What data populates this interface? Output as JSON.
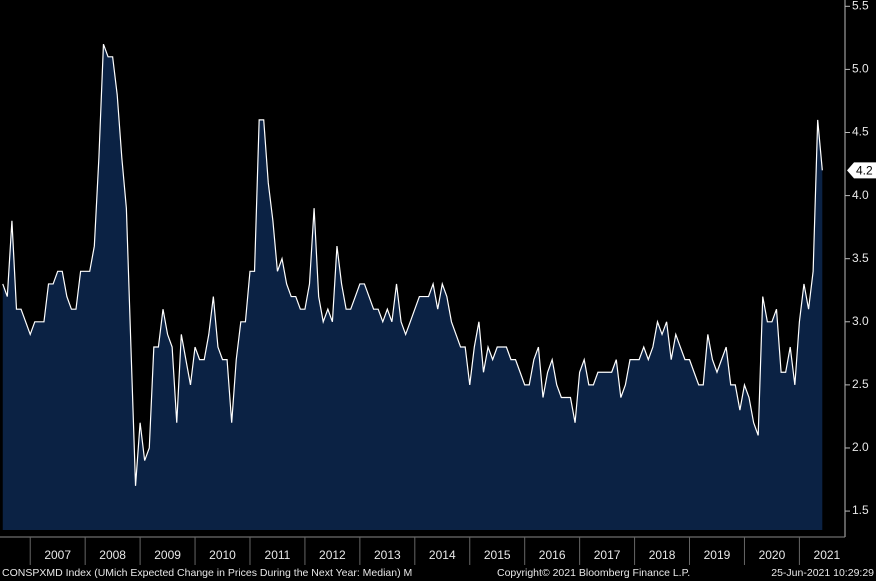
{
  "chart_data": {
    "type": "area",
    "series": [
      {
        "name": "CONSPXMD Index (UMich Expected Change in Prices During the Next Year: Median)  M",
        "color": "#ffffff",
        "fill": "#0b2244",
        "x": [
          2006.5,
          2006.583,
          2006.667,
          2006.75,
          2006.833,
          2006.917,
          2007,
          2007.083,
          2007.167,
          2007.25,
          2007.333,
          2007.417,
          2007.5,
          2007.583,
          2007.667,
          2007.75,
          2007.833,
          2007.917,
          2008,
          2008.083,
          2008.167,
          2008.25,
          2008.333,
          2008.417,
          2008.5,
          2008.583,
          2008.667,
          2008.75,
          2008.833,
          2008.917,
          2009,
          2009.083,
          2009.167,
          2009.25,
          2009.333,
          2009.417,
          2009.5,
          2009.583,
          2009.667,
          2009.75,
          2009.833,
          2009.917,
          2010,
          2010.083,
          2010.167,
          2010.25,
          2010.333,
          2010.417,
          2010.5,
          2010.583,
          2010.667,
          2010.75,
          2010.833,
          2010.917,
          2011,
          2011.083,
          2011.167,
          2011.25,
          2011.333,
          2011.417,
          2011.5,
          2011.583,
          2011.667,
          2011.75,
          2011.833,
          2011.917,
          2012,
          2012.083,
          2012.167,
          2012.25,
          2012.333,
          2012.417,
          2012.5,
          2012.583,
          2012.667,
          2012.75,
          2012.833,
          2012.917,
          2013,
          2013.083,
          2013.167,
          2013.25,
          2013.333,
          2013.417,
          2013.5,
          2013.583,
          2013.667,
          2013.75,
          2013.833,
          2013.917,
          2014,
          2014.083,
          2014.167,
          2014.25,
          2014.333,
          2014.417,
          2014.5,
          2014.583,
          2014.667,
          2014.75,
          2014.833,
          2014.917,
          2015,
          2015.083,
          2015.167,
          2015.25,
          2015.333,
          2015.417,
          2015.5,
          2015.583,
          2015.667,
          2015.75,
          2015.833,
          2015.917,
          2016,
          2016.083,
          2016.167,
          2016.25,
          2016.333,
          2016.417,
          2016.5,
          2016.583,
          2016.667,
          2016.75,
          2016.833,
          2016.917,
          2017,
          2017.083,
          2017.167,
          2017.25,
          2017.333,
          2017.417,
          2017.5,
          2017.583,
          2017.667,
          2017.75,
          2017.833,
          2017.917,
          2018,
          2018.083,
          2018.167,
          2018.25,
          2018.333,
          2018.417,
          2018.5,
          2018.583,
          2018.667,
          2018.75,
          2018.833,
          2018.917,
          2019,
          2019.083,
          2019.167,
          2019.25,
          2019.333,
          2019.417,
          2019.5,
          2019.583,
          2019.667,
          2019.75,
          2019.833,
          2019.917,
          2020,
          2020.083,
          2020.167,
          2020.25,
          2020.333,
          2020.417,
          2020.5,
          2020.583,
          2020.667,
          2020.75,
          2020.833,
          2020.917,
          2021,
          2021.083,
          2021.167,
          2021.25,
          2021.333,
          2021.417
        ],
        "values": [
          3.3,
          3.2,
          3.8,
          3.1,
          3.1,
          3.0,
          2.9,
          3.0,
          3.0,
          3.0,
          3.3,
          3.3,
          3.4,
          3.4,
          3.2,
          3.1,
          3.1,
          3.4,
          3.4,
          3.4,
          3.6,
          4.3,
          5.2,
          5.1,
          5.1,
          4.8,
          4.3,
          3.9,
          2.8,
          1.7,
          2.2,
          1.9,
          2.0,
          2.8,
          2.8,
          3.1,
          2.9,
          2.8,
          2.2,
          2.9,
          2.7,
          2.5,
          2.8,
          2.7,
          2.7,
          2.9,
          3.2,
          2.8,
          2.7,
          2.7,
          2.2,
          2.7,
          3.0,
          3.0,
          3.4,
          3.4,
          4.6,
          4.6,
          4.1,
          3.8,
          3.4,
          3.5,
          3.3,
          3.2,
          3.2,
          3.1,
          3.1,
          3.3,
          3.9,
          3.2,
          3.0,
          3.1,
          3.0,
          3.6,
          3.3,
          3.1,
          3.1,
          3.2,
          3.3,
          3.3,
          3.2,
          3.1,
          3.1,
          3.0,
          3.1,
          3.0,
          3.3,
          3.0,
          2.9,
          3.0,
          3.1,
          3.2,
          3.2,
          3.2,
          3.3,
          3.1,
          3.3,
          3.2,
          3.0,
          2.9,
          2.8,
          2.8,
          2.5,
          2.8,
          3.0,
          2.6,
          2.8,
          2.7,
          2.8,
          2.8,
          2.8,
          2.7,
          2.7,
          2.6,
          2.5,
          2.5,
          2.7,
          2.8,
          2.4,
          2.6,
          2.7,
          2.5,
          2.4,
          2.4,
          2.4,
          2.2,
          2.6,
          2.7,
          2.5,
          2.5,
          2.6,
          2.6,
          2.6,
          2.6,
          2.7,
          2.4,
          2.5,
          2.7,
          2.7,
          2.7,
          2.8,
          2.7,
          2.8,
          3.0,
          2.9,
          3.0,
          2.7,
          2.9,
          2.8,
          2.7,
          2.7,
          2.6,
          2.5,
          2.5,
          2.9,
          2.7,
          2.6,
          2.7,
          2.8,
          2.5,
          2.5,
          2.3,
          2.5,
          2.4,
          2.2,
          2.1,
          3.2,
          3.0,
          3.0,
          3.1,
          2.6,
          2.6,
          2.8,
          2.5,
          3.0,
          3.3,
          3.1,
          3.4,
          4.6,
          4.2
        ]
      }
    ],
    "xlim": [
      2006.45,
      2021.83
    ],
    "xticks": [
      {
        "value": 2007.5,
        "label": "2007"
      },
      {
        "value": 2008.5,
        "label": "2008"
      },
      {
        "value": 2009.5,
        "label": "2009"
      },
      {
        "value": 2010.5,
        "label": "2010"
      },
      {
        "value": 2011.5,
        "label": "2011"
      },
      {
        "value": 2012.5,
        "label": "2012"
      },
      {
        "value": 2013.5,
        "label": "2013"
      },
      {
        "value": 2014.5,
        "label": "2014"
      },
      {
        "value": 2015.5,
        "label": "2015"
      },
      {
        "value": 2016.5,
        "label": "2016"
      },
      {
        "value": 2017.5,
        "label": "2017"
      },
      {
        "value": 2018.5,
        "label": "2018"
      },
      {
        "value": 2019.5,
        "label": "2019"
      },
      {
        "value": 2020.5,
        "label": "2020"
      },
      {
        "value": 2021.5,
        "label": "2021"
      }
    ],
    "ylim": [
      1.35,
      5.55
    ],
    "yticks": [
      1.5,
      {
        "value": 2,
        "label": "2.0"
      },
      2.5,
      {
        "value": 3,
        "label": "3.0"
      },
      3.5,
      {
        "value": 4,
        "label": "4.0"
      },
      4.5,
      {
        "value": 5,
        "label": "5.0"
      },
      5.5
    ],
    "copyright": "Copyright© 2021 Bloomberg Finance L.P.",
    "timestamp": "25-Jun-2021 10:29:29"
  }
}
